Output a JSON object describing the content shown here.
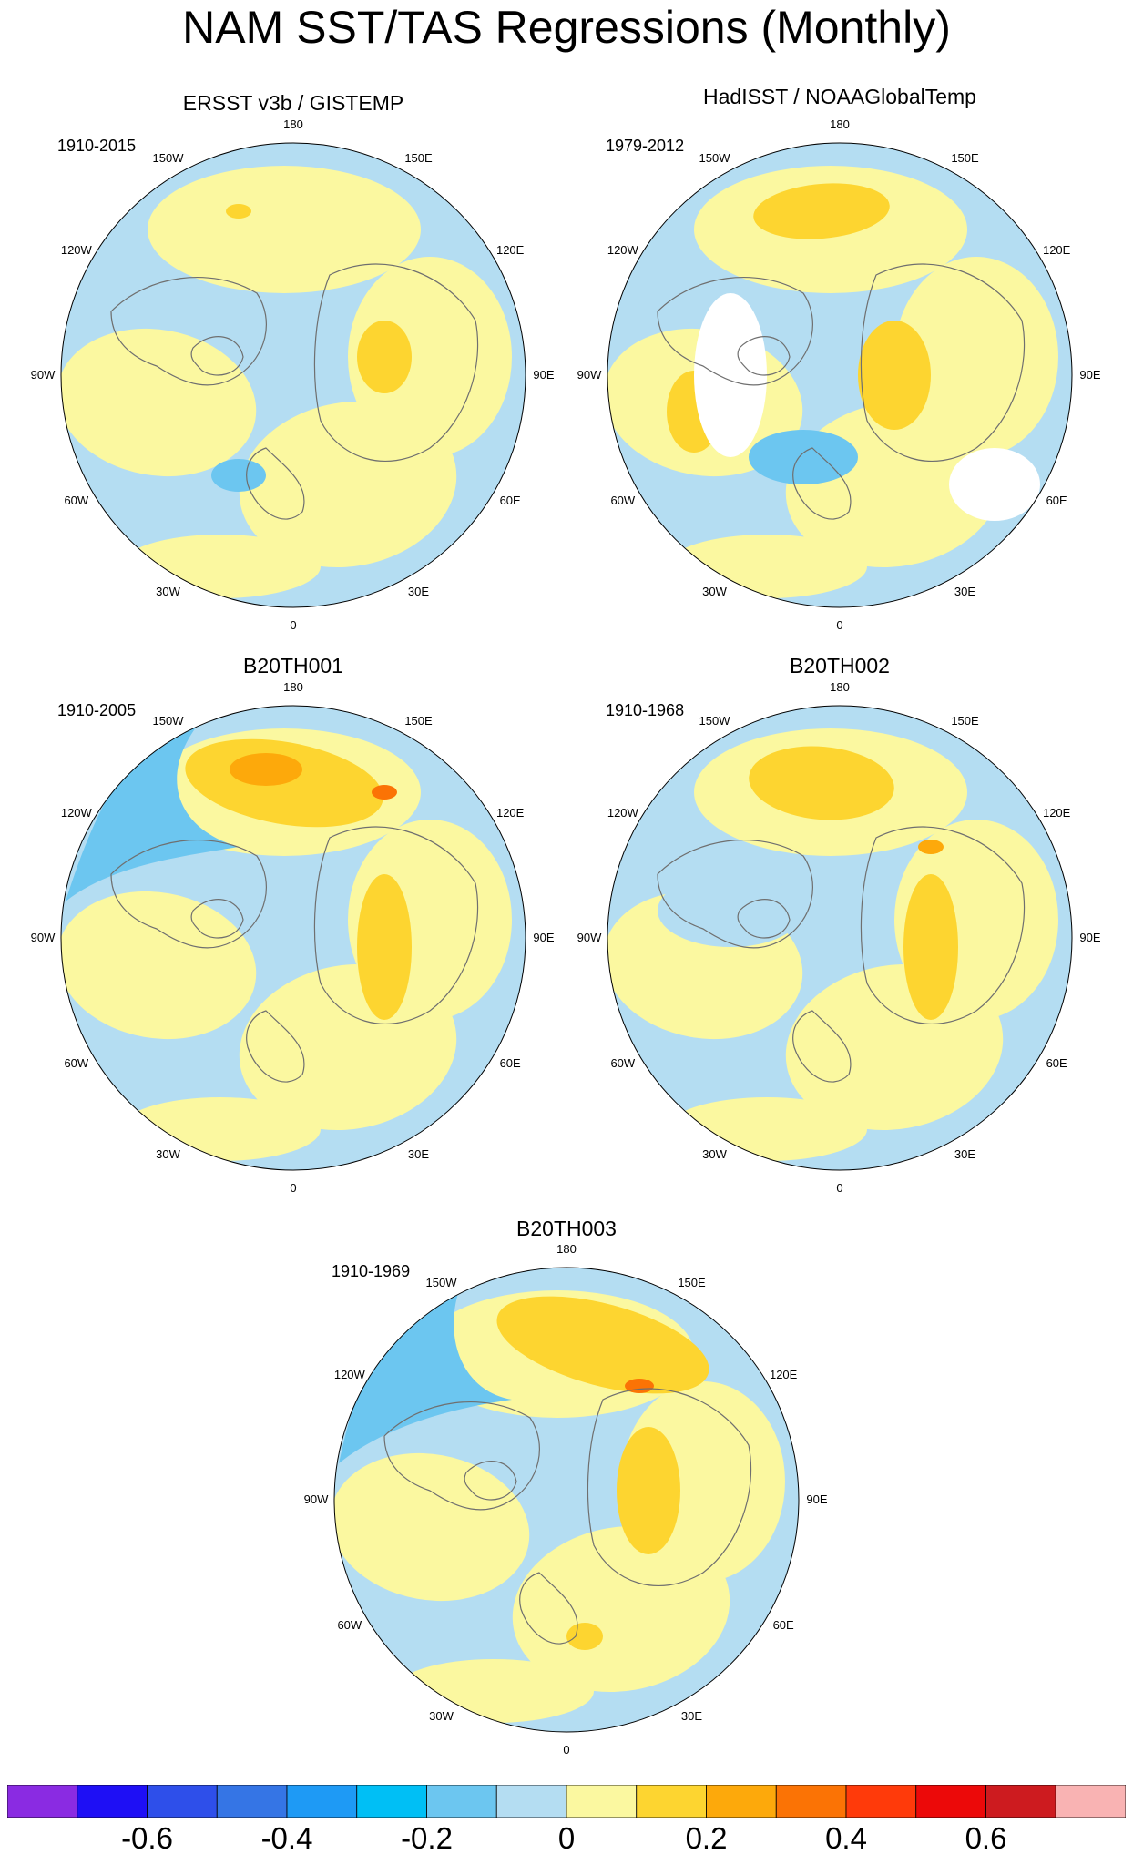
{
  "title": "NAM SST/TAS Regressions (Monthly)",
  "panels": [
    {
      "title": "ERSST v3b / GISTEMP",
      "period": "1910-2015"
    },
    {
      "title": "HadISST / NOAAGlobalTemp",
      "period": "1979-2012"
    },
    {
      "title": "B20TH001",
      "period": "1910-2005"
    },
    {
      "title": "B20TH002",
      "period": "1910-1968"
    },
    {
      "title": "B20TH003",
      "period": "1910-1969"
    }
  ],
  "longitude_labels": {
    "top": "180",
    "bottom": "0",
    "w150": "150W",
    "e150": "150E",
    "w120": "120W",
    "e120": "120E",
    "w90": "90W",
    "e90": "90E",
    "w60": "60W",
    "e60": "60E",
    "w30": "30W",
    "e30": "30E"
  },
  "colorbar": {
    "colors": [
      "#8A2BE2",
      "#1E0FF5",
      "#2E4FEA",
      "#3575E5",
      "#1E9AF5",
      "#00BFF5",
      "#6CC6F0",
      "#B4DDF2",
      "#FBF8A0",
      "#FDD530",
      "#FDA90B",
      "#FB7305",
      "#FF3A0A",
      "#EC0909",
      "#CD1B1F",
      "#F9B3B3"
    ],
    "labels": [
      "-0.6",
      "-0.4",
      "-0.2",
      "0",
      "0.2",
      "0.4",
      "0.6"
    ]
  },
  "map_colors": {
    "ocean_neg": "#B4DDF2",
    "pos": "#FBF8A0",
    "pos2": "#FDD530",
    "pos3": "#FDA90B",
    "pos4": "#FB7305",
    "neg2": "#6CC6F0",
    "neg3": "#00BFF5",
    "missing": "#FFFFFF"
  }
}
